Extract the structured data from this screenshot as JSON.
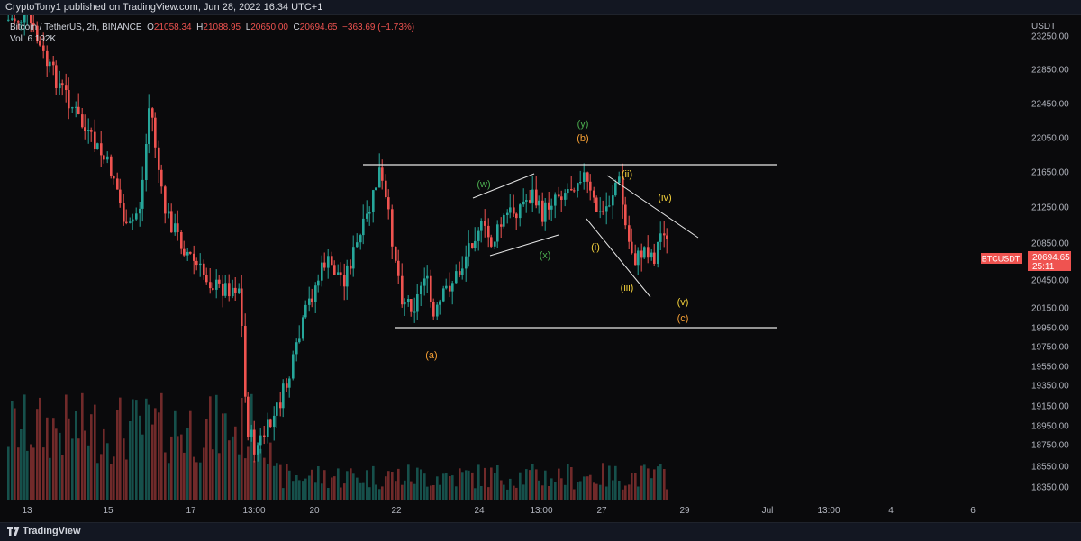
{
  "header": {
    "publish_text": "CryptoTony1 published on TradingView.com, Jun 28, 2022 16:34 UTC+1"
  },
  "legend": {
    "symbol": "Bitcoin / TetherUS, 2h, BINANCE",
    "o_label": "O",
    "o_value": "21058.34",
    "h_label": "H",
    "h_value": "21088.95",
    "l_label": "L",
    "l_value": "20650.00",
    "c_label": "C",
    "c_value": "20694.65",
    "change": "−363.69 (−1.73%)",
    "vol_label": "Vol",
    "vol_value": "6.192K"
  },
  "price_axis": {
    "currency": "USDT",
    "ticks": [
      "23250.00",
      "22850.00",
      "22450.00",
      "22050.00",
      "21650.00",
      "21250.00",
      "20850.00",
      "20450.00",
      "20150.00",
      "19950.00",
      "19750.00",
      "19550.00",
      "19350.00",
      "19150.00",
      "18950.00",
      "18750.00",
      "18550.00",
      "18350.00"
    ]
  },
  "time_axis": {
    "ticks": [
      "13",
      "15",
      "17",
      "13:00",
      "20",
      "22",
      "24",
      "13:00",
      "27",
      "29",
      "Jul",
      "13:00",
      "4",
      "6"
    ]
  },
  "price_tag": {
    "symbol": "BTCUSDT",
    "price": "20694.65",
    "countdown": "25:11",
    "color": "#ef5350"
  },
  "waves": {
    "a": "(a)",
    "b": "(b)",
    "c": "(c)",
    "w": "(w)",
    "x": "(x)",
    "y": "(y)",
    "i": "(i)",
    "ii": "(ii)",
    "iii": "(iii)",
    "iv": "(iv)",
    "v": "(v)"
  },
  "colors": {
    "up": "#26a69a",
    "down": "#ef5350",
    "orange": "#f7a035",
    "green": "#4caf50",
    "yellow": "#f5d23c",
    "line": "#e6e6e6"
  },
  "footer": {
    "brand": "TradingView"
  }
}
